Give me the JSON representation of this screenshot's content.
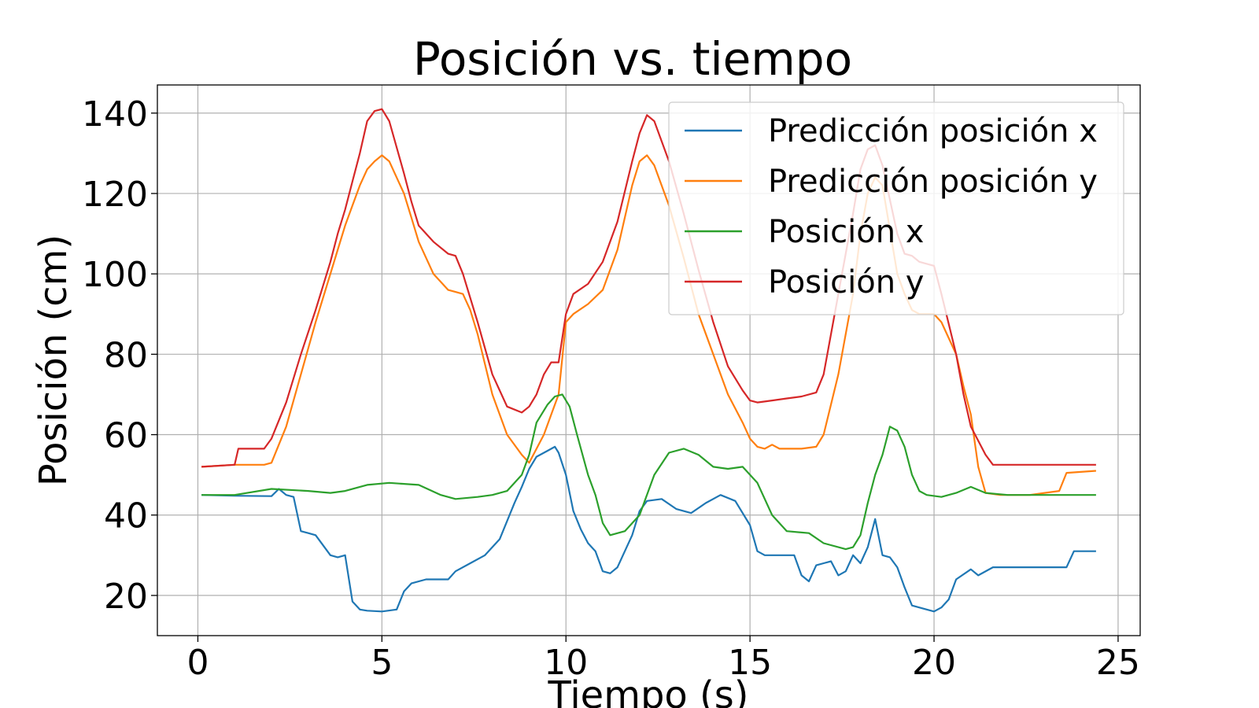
{
  "chart_data": {
    "type": "line",
    "title": "Posición vs. tiempo",
    "xlabel": "Tiempo (s)",
    "ylabel": "Posición (cm)",
    "xlim": [
      -1.1,
      25.6
    ],
    "ylim": [
      10,
      147
    ],
    "xticks": [
      0,
      5,
      10,
      15,
      20,
      25
    ],
    "yticks": [
      20,
      40,
      60,
      80,
      100,
      120,
      140
    ],
    "grid": true,
    "legend_position": "top-right",
    "series": [
      {
        "name": "Predicción posición x",
        "color": "#1f77b4",
        "x": [
          0.1,
          1.0,
          2.0,
          2.2,
          2.4,
          2.6,
          2.8,
          3.0,
          3.2,
          3.6,
          3.8,
          4.0,
          4.2,
          4.4,
          4.6,
          5.0,
          5.4,
          5.6,
          5.8,
          6.2,
          6.8,
          7.0,
          7.4,
          7.8,
          8.2,
          8.6,
          8.8,
          9.0,
          9.2,
          9.5,
          9.7,
          9.8,
          10.0,
          10.2,
          10.4,
          10.6,
          10.8,
          11.0,
          11.2,
          11.4,
          11.8,
          12.0,
          12.2,
          12.6,
          13.0,
          13.4,
          13.8,
          14.2,
          14.6,
          15.0,
          15.2,
          15.4,
          15.8,
          16.2,
          16.4,
          16.6,
          16.8,
          17.0,
          17.2,
          17.4,
          17.6,
          17.8,
          18.0,
          18.2,
          18.4,
          18.6,
          18.8,
          19.0,
          19.2,
          19.4,
          19.8,
          20.0,
          20.2,
          20.4,
          20.6,
          21.0,
          21.2,
          21.6,
          22.0,
          22.4,
          23.0,
          23.6,
          23.8,
          24.4
        ],
        "y": [
          45,
          44.8,
          44.7,
          46.5,
          45,
          44.5,
          36,
          35.5,
          35,
          30,
          29.5,
          30,
          18.5,
          16.5,
          16.2,
          16,
          16.5,
          21,
          23,
          24,
          24,
          26,
          28,
          30,
          34,
          43,
          47,
          51.5,
          54.5,
          56,
          57,
          55.5,
          50,
          41,
          36.5,
          33,
          31,
          26,
          25.5,
          27,
          35,
          41,
          43.5,
          44,
          41.5,
          40.5,
          43,
          45,
          43.5,
          37.5,
          31,
          30,
          30,
          30,
          25,
          23.5,
          27.5,
          28,
          28.5,
          25,
          26,
          30,
          28,
          32,
          39,
          30,
          29.5,
          27,
          22,
          17.5,
          16.5,
          16,
          17,
          19,
          24,
          26.5,
          25,
          27,
          27,
          27,
          27,
          27,
          31,
          31
        ]
      },
      {
        "name": "Predicción posición y",
        "color": "#ff7f0e",
        "x": [
          0.1,
          1.0,
          1.8,
          2.0,
          2.4,
          2.8,
          3.2,
          3.6,
          3.8,
          4.0,
          4.2,
          4.4,
          4.6,
          4.8,
          5.0,
          5.2,
          5.6,
          5.8,
          6.0,
          6.4,
          6.8,
          7.0,
          7.2,
          7.4,
          7.6,
          8.0,
          8.4,
          8.8,
          9.0,
          9.4,
          9.6,
          9.8,
          10.0,
          10.2,
          10.6,
          11.0,
          11.4,
          11.8,
          12.0,
          12.2,
          12.4,
          12.8,
          13.2,
          13.6,
          14.0,
          14.4,
          14.8,
          15.0,
          15.2,
          15.4,
          15.6,
          15.8,
          16.0,
          16.4,
          16.8,
          17.0,
          17.4,
          17.8,
          18.0,
          18.2,
          18.4,
          18.6,
          19.0,
          19.2,
          19.4,
          19.6,
          20.0,
          20.2,
          20.6,
          20.8,
          21.0,
          21.2,
          21.4,
          21.8,
          22.2,
          22.6,
          23.0,
          23.4,
          23.6,
          24.4
        ],
        "y": [
          52,
          52.5,
          52.5,
          53,
          62,
          75,
          88,
          100,
          106,
          112,
          117,
          122,
          126,
          128,
          129.5,
          128,
          120,
          114,
          108,
          100,
          96,
          95.5,
          95,
          91,
          85,
          70,
          60,
          55,
          53,
          60,
          65,
          70,
          88,
          90,
          92.5,
          96,
          106,
          122,
          128,
          129.5,
          127,
          117,
          104,
          90,
          80,
          70,
          63,
          59,
          57,
          56.5,
          57.5,
          56.5,
          56.5,
          56.5,
          57,
          60,
          75,
          95,
          110,
          120,
          124,
          122,
          100,
          95,
          91,
          90,
          90,
          88,
          80,
          72,
          65,
          52,
          45.5,
          45,
          45,
          45,
          45.5,
          46,
          50.5,
          51
        ]
      },
      {
        "name": "Posición x",
        "color": "#2ca02c",
        "x": [
          0.1,
          1.0,
          2.0,
          3.0,
          3.6,
          4.0,
          4.6,
          5.2,
          6.0,
          6.6,
          7.0,
          7.6,
          8.0,
          8.4,
          8.8,
          9.0,
          9.2,
          9.5,
          9.7,
          9.9,
          10.1,
          10.3,
          10.6,
          10.8,
          11.0,
          11.2,
          11.6,
          12.0,
          12.4,
          12.8,
          13.2,
          13.6,
          14.0,
          14.4,
          14.8,
          15.2,
          15.6,
          16.0,
          16.6,
          17.0,
          17.6,
          17.8,
          18.0,
          18.2,
          18.4,
          18.6,
          18.8,
          19.0,
          19.2,
          19.4,
          19.6,
          19.8,
          20.2,
          20.6,
          21.0,
          21.4,
          22.0,
          23.0,
          24.4
        ],
        "y": [
          45,
          45,
          46.5,
          46,
          45.5,
          46,
          47.5,
          48,
          47.5,
          45,
          44,
          44.5,
          45,
          46,
          50,
          55,
          63,
          67.5,
          69.5,
          70,
          67,
          60,
          50,
          45,
          38,
          35,
          36,
          40,
          50,
          55.5,
          56.5,
          55,
          52,
          51.5,
          52,
          48,
          40,
          36,
          35.5,
          33,
          31.5,
          32,
          35,
          43,
          50,
          55,
          62,
          61,
          57,
          50,
          46,
          45,
          44.5,
          45.5,
          47,
          45.5,
          45,
          45,
          45
        ]
      },
      {
        "name": "Posición y",
        "color": "#d62728",
        "x": [
          0.1,
          1.0,
          1.1,
          1.8,
          2.0,
          2.4,
          2.8,
          3.2,
          3.6,
          3.8,
          4.0,
          4.2,
          4.4,
          4.6,
          4.8,
          5.0,
          5.2,
          5.6,
          5.8,
          6.0,
          6.4,
          6.8,
          7.0,
          7.2,
          7.6,
          8.0,
          8.4,
          8.8,
          9.0,
          9.2,
          9.4,
          9.6,
          9.8,
          10.0,
          10.2,
          10.6,
          11.0,
          11.4,
          11.8,
          12.0,
          12.2,
          12.4,
          12.8,
          13.2,
          13.6,
          14.0,
          14.4,
          14.8,
          15.0,
          15.2,
          15.6,
          16.0,
          16.4,
          16.8,
          17.0,
          17.4,
          17.8,
          18.0,
          18.2,
          18.4,
          18.6,
          19.0,
          19.2,
          19.4,
          19.6,
          20.0,
          20.2,
          20.6,
          20.8,
          21.0,
          21.4,
          21.6,
          21.8,
          22.2,
          23.0,
          24.4
        ],
        "y": [
          52,
          52.5,
          56.5,
          56.5,
          59,
          68,
          80,
          91,
          103,
          110,
          116,
          123,
          130,
          138,
          140.5,
          141,
          138,
          125,
          118,
          112,
          108,
          105,
          104.5,
          100,
          88,
          75,
          67,
          65.5,
          67,
          70,
          75,
          78,
          78,
          90,
          95,
          97.5,
          103,
          113,
          128,
          135,
          139.5,
          138,
          128,
          115,
          101,
          88,
          77,
          71,
          68.5,
          68,
          68.5,
          69,
          69.5,
          70.5,
          75,
          95,
          115,
          126,
          131,
          132,
          127,
          110,
          105,
          104.5,
          103,
          102,
          95,
          80,
          70,
          62,
          55,
          52.5,
          52.5,
          52.5,
          52.5,
          52.5
        ]
      }
    ]
  }
}
